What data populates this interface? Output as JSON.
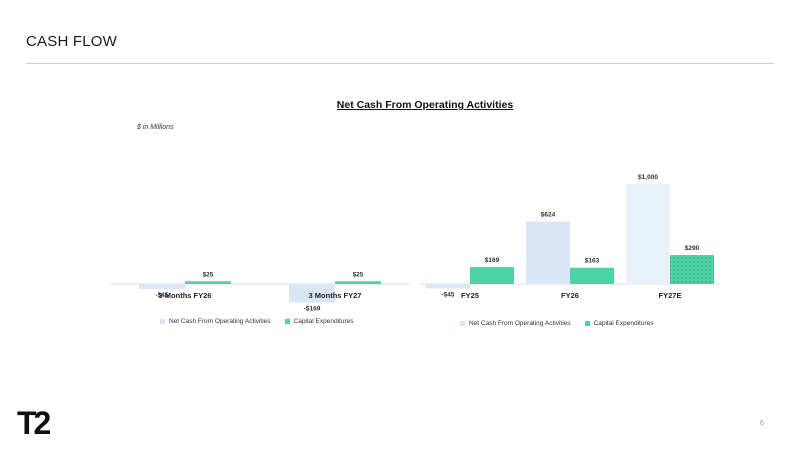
{
  "slide": {
    "title": "CASH FLOW",
    "chart_heading": "Net Cash From Operating Activities",
    "units_note": "$ in Millions",
    "page_number": "6",
    "logo_text": "T2"
  },
  "colors": {
    "operating": "#d9e6f5",
    "operating_light": "#e9f1fa",
    "capex": "#4dd4a6",
    "rule": "#cfcfcf"
  },
  "chart_data": [
    {
      "type": "bar",
      "categories": [
        "3 Months FY26",
        "3 Months FY27"
      ],
      "series": [
        {
          "name": "Net Cash From Operating Activities",
          "values": [
            -45,
            -169
          ],
          "labels": [
            "-$45",
            "-$169"
          ]
        },
        {
          "name": "Capital Expenditures",
          "values": [
            25,
            25
          ],
          "labels": [
            "$25",
            "$25"
          ]
        }
      ],
      "legend": "bottom-center",
      "grid": false
    },
    {
      "type": "bar",
      "categories": [
        "FY25",
        "FY26",
        "FY27E"
      ],
      "series": [
        {
          "name": "Net Cash From Operating Activities",
          "values": [
            -45,
            624,
            1000
          ],
          "labels": [
            "-$45",
            "$624",
            "$1,000"
          ]
        },
        {
          "name": "Capital Expenditures",
          "values": [
            169,
            163,
            290
          ],
          "labels": [
            "$169",
            "$163",
            "$290"
          ]
        }
      ],
      "legend": "bottom-center",
      "grid": false
    }
  ]
}
